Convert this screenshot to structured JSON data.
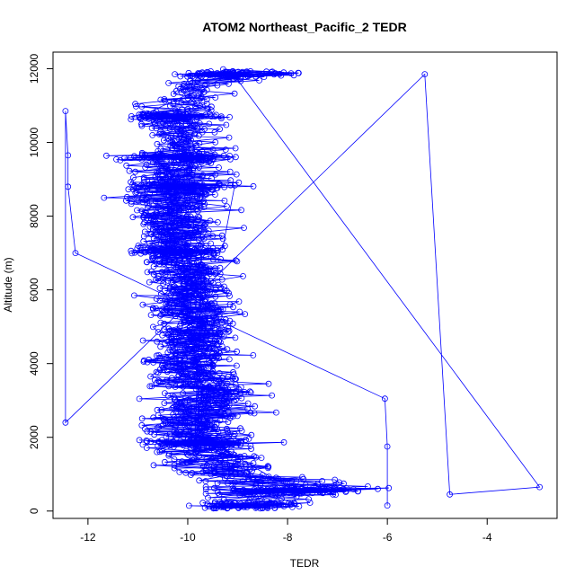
{
  "chart_data": {
    "type": "scatter",
    "title": "ATOM2 Northeast_Pacific_2 TEDR",
    "xlabel": "TEDR",
    "ylabel": "Altitude (m)",
    "xlim": [
      -12.7,
      -2.6
    ],
    "ylim": [
      -200,
      12450
    ],
    "xticks": [
      -12,
      -10,
      -8,
      -6,
      -4
    ],
    "yticks": [
      0,
      2000,
      4000,
      6000,
      8000,
      10000,
      12000
    ],
    "color": "#0000ff",
    "marker": "open-circle",
    "connected": true,
    "grid": false,
    "legend": "none",
    "x_range_profile": [
      {
        "y": 0,
        "xmin": -11.2,
        "xmax": -6.0
      },
      {
        "y": 600,
        "xmin": -11.6,
        "xmax": -3.0
      },
      {
        "y": 1200,
        "xmin": -12.0,
        "xmax": -6.0
      },
      {
        "y": 2000,
        "xmin": -12.0,
        "xmax": -6.5
      },
      {
        "y": 2400,
        "xmin": -12.5,
        "xmax": -6.6
      },
      {
        "y": 3000,
        "xmin": -11.8,
        "xmax": -6.2
      },
      {
        "y": 4000,
        "xmin": -12.0,
        "xmax": -7.0
      },
      {
        "y": 5000,
        "xmin": -11.9,
        "xmax": -6.8
      },
      {
        "y": 6000,
        "xmin": -11.8,
        "xmax": -7.0
      },
      {
        "y": 7000,
        "xmin": -12.2,
        "xmax": -7.2
      },
      {
        "y": 8000,
        "xmin": -12.3,
        "xmax": -7.3
      },
      {
        "y": 8800,
        "xmin": -12.5,
        "xmax": -7.0
      },
      {
        "y": 9600,
        "xmin": -12.5,
        "xmax": -6.8
      },
      {
        "y": 10400,
        "xmin": -12.0,
        "xmax": -7.0
      },
      {
        "y": 10800,
        "xmin": -12.5,
        "xmax": -7.0
      },
      {
        "y": 11400,
        "xmin": -11.8,
        "xmax": -7.0
      },
      {
        "y": 11900,
        "xmin": -11.6,
        "xmax": -5.3
      }
    ],
    "dense_levels": [
      150,
      550,
      1850,
      7050,
      8800,
      9600,
      10700,
      11850
    ],
    "notable_points": [
      {
        "x": -2.95,
        "y": 650
      },
      {
        "x": -4.75,
        "y": 450
      },
      {
        "x": -5.25,
        "y": 11850
      },
      {
        "x": -12.45,
        "y": 2400
      },
      {
        "x": -12.45,
        "y": 10850
      },
      {
        "x": -12.4,
        "y": 9650
      },
      {
        "x": -12.4,
        "y": 8800
      },
      {
        "x": -12.25,
        "y": 7000
      },
      {
        "x": -6.05,
        "y": 3050
      },
      {
        "x": -6.0,
        "y": 1750
      },
      {
        "x": -6.0,
        "y": 150
      }
    ]
  }
}
